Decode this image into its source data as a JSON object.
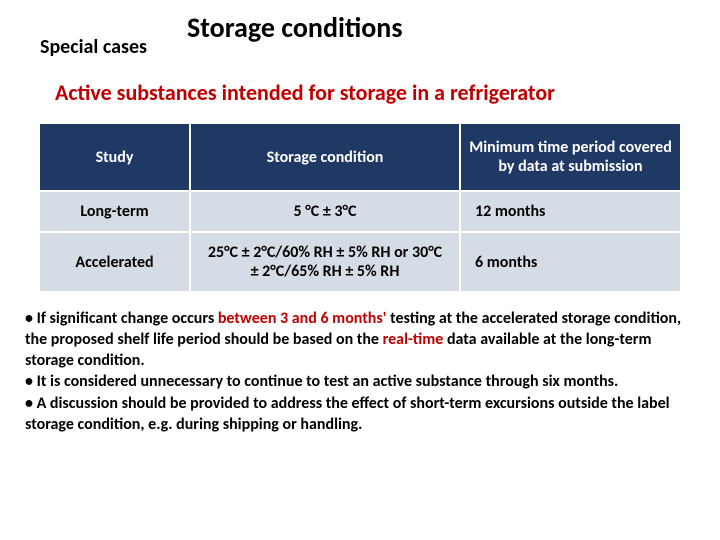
{
  "header": {
    "special_cases": "Special cases",
    "title": "Storage conditions"
  },
  "subtitle": "Active substances intended for storage in a refrigerator",
  "table": {
    "headers": {
      "study": "Study",
      "condition": "Storage condition",
      "time": "Minimum time period covered by data at submission"
    },
    "rows": [
      {
        "study": "Long-term",
        "condition": "5 °C ± 3°C",
        "time": "12 months"
      },
      {
        "study": "Accelerated",
        "condition": "25°C ± 2°C/60% RH ± 5% RH or 30°C ± 2°C/65% RH ± 5% RH",
        "time": "6 months"
      }
    ]
  },
  "bullets": {
    "b1a": "• If significant change occurs ",
    "b1b": "between 3 and 6 months' ",
    "b1c": "testing at the accelerated storage condition, the proposed shelf life period should be based on the ",
    "b1d": "real-time ",
    "b1e": "data available at the long-term storage condition.",
    "b2": "• It is considered unnecessary to continue to test an active substance through six months.",
    "b3": "• A discussion should be provided to address the effect of short-term excursions outside the label storage condition, e.g. during shipping or handling."
  },
  "colors": {
    "accent_red": "#c00000",
    "table_header_bg": "#1f3864",
    "table_cell_bg": "#d6dce5",
    "text": "#000000",
    "background": "#ffffff"
  }
}
